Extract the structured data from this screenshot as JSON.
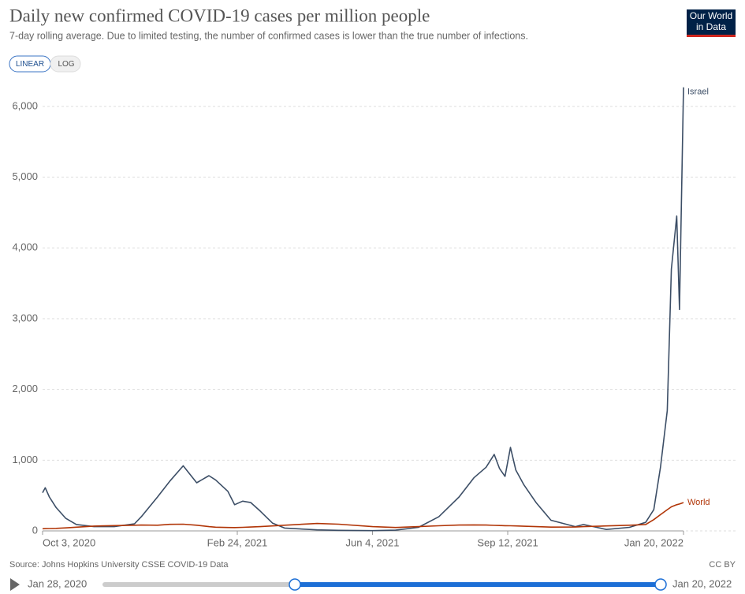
{
  "header": {
    "title": "Daily new confirmed COVID-19 cases per million people",
    "subtitle": "7-day rolling average. Due to limited testing, the number of confirmed cases is lower than the true number of infections.",
    "logo": [
      "Our World",
      "in Data"
    ],
    "buttons": [
      "LINEAR",
      "LOG"
    ]
  },
  "chart_data": {
    "type": "line",
    "x": [
      "2020-10-03",
      "2020-10-05",
      "2020-10-08",
      "2020-10-13",
      "2020-10-20",
      "2020-10-28",
      "2020-11-10",
      "2020-11-25",
      "2020-12-10",
      "2020-12-15",
      "2020-12-27",
      "2021-01-05",
      "2021-01-15",
      "2021-01-25",
      "2021-02-03",
      "2021-02-08",
      "2021-02-17",
      "2021-02-22",
      "2021-02-28",
      "2021-03-06",
      "2021-03-13",
      "2021-03-22",
      "2021-03-31",
      "2021-04-24",
      "2021-05-10",
      "2021-06-04",
      "2021-06-21",
      "2021-07-08",
      "2021-07-23",
      "2021-08-07",
      "2021-08-18",
      "2021-08-27",
      "2021-09-02",
      "2021-09-06",
      "2021-09-10",
      "2021-09-14",
      "2021-09-18",
      "2021-09-24",
      "2021-10-03",
      "2021-10-14",
      "2021-11-01",
      "2021-11-07",
      "2021-11-24",
      "2021-12-11",
      "2021-12-23",
      "2021-12-29",
      "2022-01-03",
      "2022-01-08",
      "2022-01-11",
      "2022-01-15",
      "2022-01-17",
      "2022-01-20"
    ],
    "series": [
      {
        "name": "Israel",
        "color": "#3c4e66",
        "values": [
          540,
          610,
          480,
          330,
          180,
          90,
          60,
          60,
          100,
          200,
          480,
          700,
          920,
          680,
          780,
          720,
          560,
          370,
          420,
          400,
          280,
          110,
          40,
          15,
          8,
          3,
          10,
          50,
          200,
          480,
          750,
          900,
          1080,
          880,
          770,
          1180,
          860,
          650,
          400,
          150,
          60,
          90,
          20,
          50,
          120,
          300,
          900,
          1700,
          3700,
          4450,
          3130,
          6270
        ]
      },
      {
        "name": "World",
        "color": "#b13507",
        "values": [
          30,
          32,
          33,
          36,
          42,
          52,
          68,
          75,
          80,
          82,
          80,
          92,
          95,
          80,
          60,
          52,
          48,
          47,
          50,
          55,
          60,
          70,
          80,
          105,
          95,
          60,
          48,
          60,
          72,
          82,
          85,
          82,
          78,
          76,
          74,
          72,
          70,
          66,
          60,
          54,
          55,
          60,
          70,
          80,
          90,
          160,
          230,
          300,
          340,
          370,
          380,
          400
        ]
      }
    ],
    "xlim": [
      "2020-10-03",
      "2022-01-20"
    ],
    "xticks": [
      {
        "value": "2020-10-03",
        "label": "Oct 3, 2020"
      },
      {
        "value": "2021-02-24",
        "label": "Feb 24, 2021"
      },
      {
        "value": "2021-06-04",
        "label": "Jun 4, 2021"
      },
      {
        "value": "2021-09-12",
        "label": "Sep 12, 2021"
      },
      {
        "value": "2022-01-20",
        "label": "Jan 20, 2022"
      }
    ],
    "ylim": [
      0,
      6300
    ],
    "yticks": [
      0,
      {
        "value": 1000,
        "label": "1,000"
      },
      {
        "value": 2000,
        "label": "2,000"
      },
      {
        "value": 3000,
        "label": "3,000"
      },
      {
        "value": 4000,
        "label": "4,000"
      },
      {
        "value": 5000,
        "label": "5,000"
      },
      {
        "value": 6000,
        "label": "6,000"
      }
    ],
    "grid": true
  },
  "footer": {
    "source": "Source: Johns Hopkins University CSSE COVID-19 Data",
    "license": "CC BY",
    "timeline_start": "Jan 28, 2020",
    "timeline_end": "Jan 20, 2022"
  }
}
